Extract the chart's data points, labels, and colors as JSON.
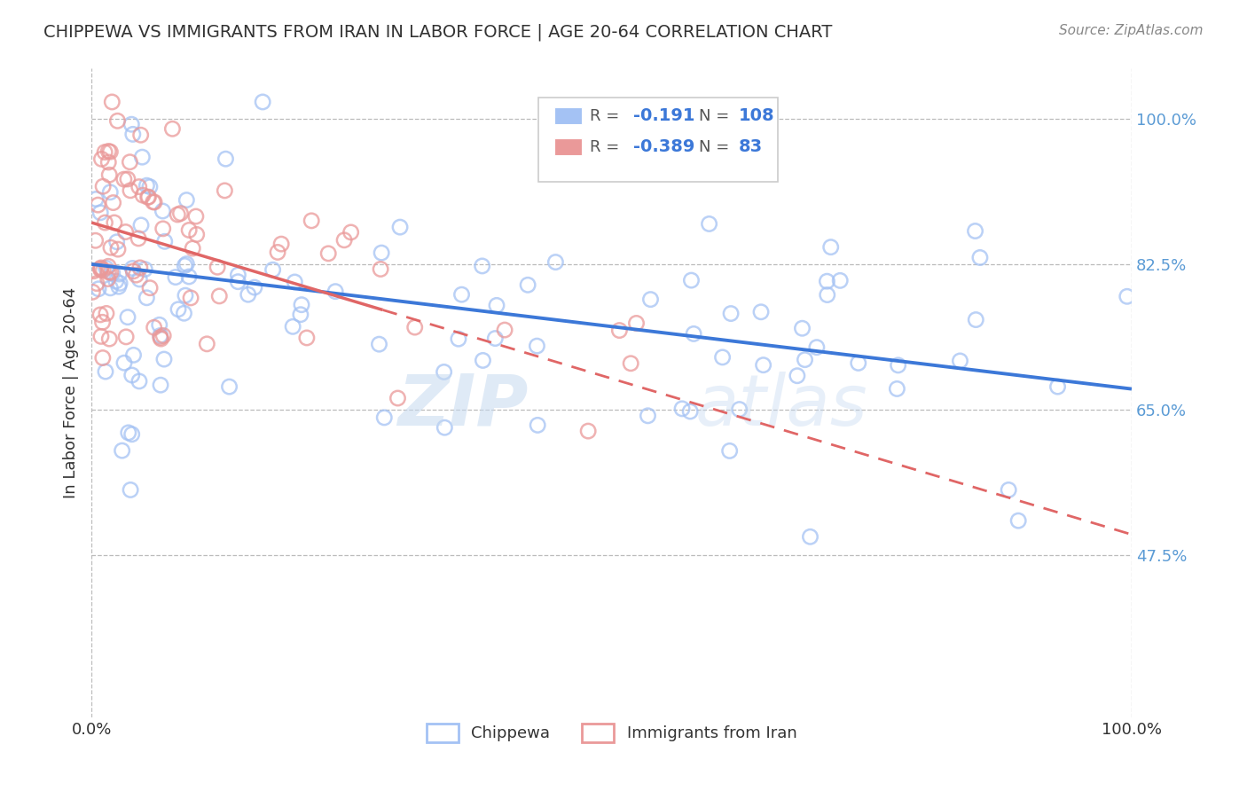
{
  "title": "CHIPPEWA VS IMMIGRANTS FROM IRAN IN LABOR FORCE | AGE 20-64 CORRELATION CHART",
  "source": "Source: ZipAtlas.com",
  "ylabel": "In Labor Force | Age 20-64",
  "r_blue": -0.191,
  "n_blue": 108,
  "r_pink": -0.389,
  "n_pink": 83,
  "legend_labels": [
    "Chippewa",
    "Immigrants from Iran"
  ],
  "blue_color": "#a4c2f4",
  "pink_color": "#ea9999",
  "blue_line_color": "#3c78d8",
  "pink_line_color": "#e06666",
  "xlim": [
    0.0,
    1.0
  ],
  "ylim": [
    0.28,
    1.06
  ],
  "yticks": [
    0.475,
    0.65,
    0.825,
    1.0
  ],
  "ytick_labels": [
    "47.5%",
    "65.0%",
    "82.5%",
    "100.0%"
  ],
  "xticks": [
    0.0,
    0.25,
    0.5,
    0.75,
    1.0
  ],
  "xtick_labels": [
    "0.0%",
    "",
    "",
    "",
    "100.0%"
  ],
  "watermark_zip": "ZIP",
  "watermark_atlas": "atlas",
  "background_color": "#ffffff",
  "grid_color": "#bbbbbb",
  "blue_trend_x0": 0.0,
  "blue_trend_y0": 0.825,
  "blue_trend_x1": 1.0,
  "blue_trend_y1": 0.675,
  "pink_trend_x0": 0.0,
  "pink_trend_y0": 0.875,
  "pink_trend_x1": 1.0,
  "pink_trend_y1": 0.5
}
